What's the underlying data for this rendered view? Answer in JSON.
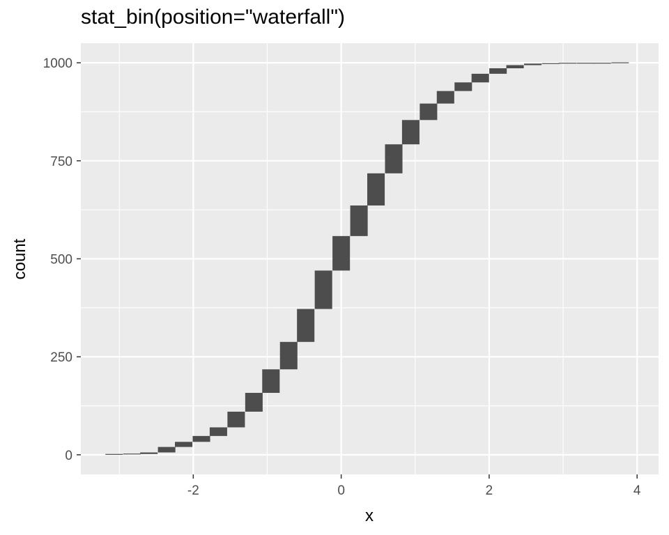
{
  "chart_data": {
    "type": "bar",
    "subtype": "waterfall histogram",
    "title": "stat_bin(position=\"waterfall\")",
    "xlabel": "x",
    "ylabel": "count",
    "xlim": [
      -3.52,
      4.29
    ],
    "ylim": [
      -50,
      1050
    ],
    "x_ticks": [
      -2,
      0,
      2,
      4
    ],
    "x_tick_labels": [
      "-2",
      "0",
      "2",
      "4"
    ],
    "y_ticks": [
      0,
      250,
      500,
      750,
      1000
    ],
    "y_tick_labels": [
      "0",
      "250",
      "500",
      "750",
      "1000"
    ],
    "bin_width": 0.236,
    "grid": true,
    "bar_color": "#4d4d4d",
    "panel_background": "#ebebeb",
    "grid_color": "#ffffff",
    "bins": [
      {
        "x": -3.07,
        "start": 0,
        "end": 1
      },
      {
        "x": -2.83,
        "start": 1,
        "end": 2
      },
      {
        "x": -2.6,
        "start": 2,
        "end": 6
      },
      {
        "x": -2.36,
        "start": 6,
        "end": 20
      },
      {
        "x": -2.13,
        "start": 20,
        "end": 33
      },
      {
        "x": -1.89,
        "start": 33,
        "end": 48
      },
      {
        "x": -1.66,
        "start": 48,
        "end": 70
      },
      {
        "x": -1.42,
        "start": 70,
        "end": 110
      },
      {
        "x": -1.18,
        "start": 110,
        "end": 158
      },
      {
        "x": -0.95,
        "start": 158,
        "end": 218
      },
      {
        "x": -0.71,
        "start": 218,
        "end": 288
      },
      {
        "x": -0.48,
        "start": 288,
        "end": 372
      },
      {
        "x": -0.24,
        "start": 372,
        "end": 470
      },
      {
        "x": 0.0,
        "start": 470,
        "end": 558
      },
      {
        "x": 0.24,
        "start": 558,
        "end": 636
      },
      {
        "x": 0.47,
        "start": 636,
        "end": 718
      },
      {
        "x": 0.71,
        "start": 718,
        "end": 792
      },
      {
        "x": 0.94,
        "start": 792,
        "end": 854
      },
      {
        "x": 1.18,
        "start": 854,
        "end": 896
      },
      {
        "x": 1.41,
        "start": 896,
        "end": 928
      },
      {
        "x": 1.65,
        "start": 928,
        "end": 950
      },
      {
        "x": 1.88,
        "start": 950,
        "end": 972
      },
      {
        "x": 2.12,
        "start": 972,
        "end": 986
      },
      {
        "x": 2.35,
        "start": 986,
        "end": 994
      },
      {
        "x": 2.59,
        "start": 994,
        "end": 998
      },
      {
        "x": 2.83,
        "start": 998,
        "end": 998
      },
      {
        "x": 3.06,
        "start": 998,
        "end": 999
      },
      {
        "x": 3.3,
        "start": 999,
        "end": 999
      },
      {
        "x": 3.53,
        "start": 999,
        "end": 999
      },
      {
        "x": 3.77,
        "start": 999,
        "end": 1000
      }
    ]
  }
}
